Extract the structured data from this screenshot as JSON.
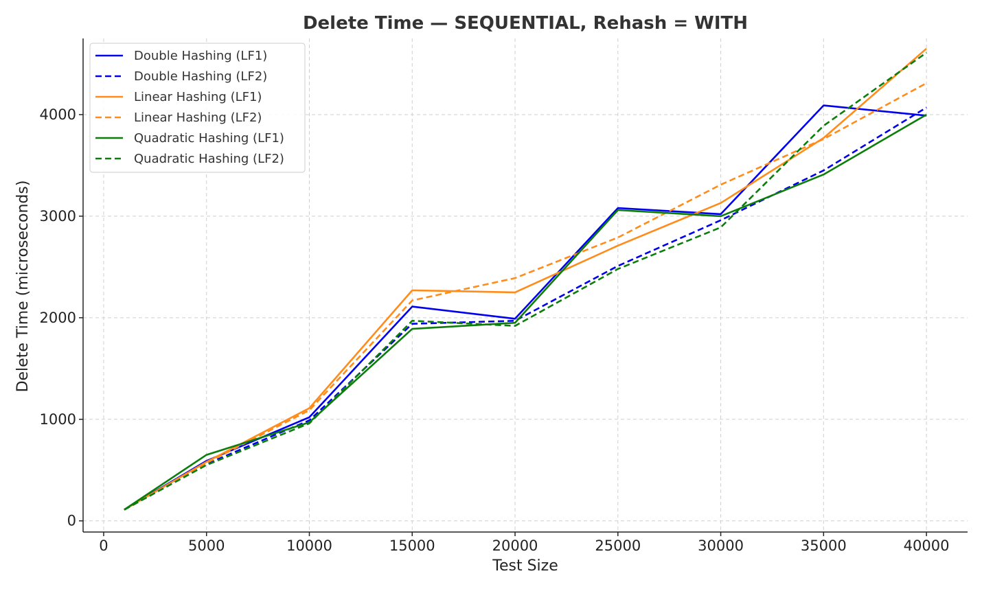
{
  "chart_data": {
    "type": "line",
    "title": "Delete Time — SEQUENTIAL, Rehash = WITH",
    "xlabel": "Test Size",
    "ylabel": "Delete Time (microseconds)",
    "xlim": [
      -1000,
      42000
    ],
    "ylim": [
      -110,
      4750
    ],
    "xticks": [
      0,
      5000,
      10000,
      15000,
      20000,
      25000,
      30000,
      35000,
      40000
    ],
    "yticks": [
      0,
      1000,
      2000,
      3000,
      4000
    ],
    "grid": true,
    "legend_position": "top-left",
    "x": [
      1000,
      5000,
      10000,
      15000,
      20000,
      25000,
      30000,
      35000,
      40000
    ],
    "series": [
      {
        "name": "Double Hashing (LF1)",
        "color": "#0000ee",
        "dash": "solid",
        "values": [
          110,
          590,
          1020,
          2110,
          1990,
          3080,
          3020,
          4090,
          3990
        ]
      },
      {
        "name": "Double Hashing (LF2)",
        "color": "#0000ee",
        "dash": "dashed",
        "values": [
          110,
          560,
          990,
          1940,
          1970,
          2510,
          2960,
          3450,
          4070
        ]
      },
      {
        "name": "Linear Hashing (LF1)",
        "color": "#ff8c1a",
        "dash": "solid",
        "values": [
          110,
          580,
          1110,
          2270,
          2250,
          2710,
          3130,
          3770,
          4650
        ]
      },
      {
        "name": "Linear Hashing (LF2)",
        "color": "#ff8c1a",
        "dash": "dashed",
        "values": [
          110,
          570,
          1090,
          2170,
          2390,
          2790,
          3310,
          3760,
          4310
        ]
      },
      {
        "name": "Quadratic Hashing (LF1)",
        "color": "#0a7d0a",
        "dash": "solid",
        "values": [
          110,
          650,
          970,
          1890,
          1950,
          3060,
          3000,
          3410,
          4000
        ]
      },
      {
        "name": "Quadratic Hashing (LF2)",
        "color": "#0a7d0a",
        "dash": "dashed",
        "values": [
          110,
          550,
          960,
          1970,
          1920,
          2480,
          2890,
          3890,
          4610
        ]
      }
    ]
  }
}
